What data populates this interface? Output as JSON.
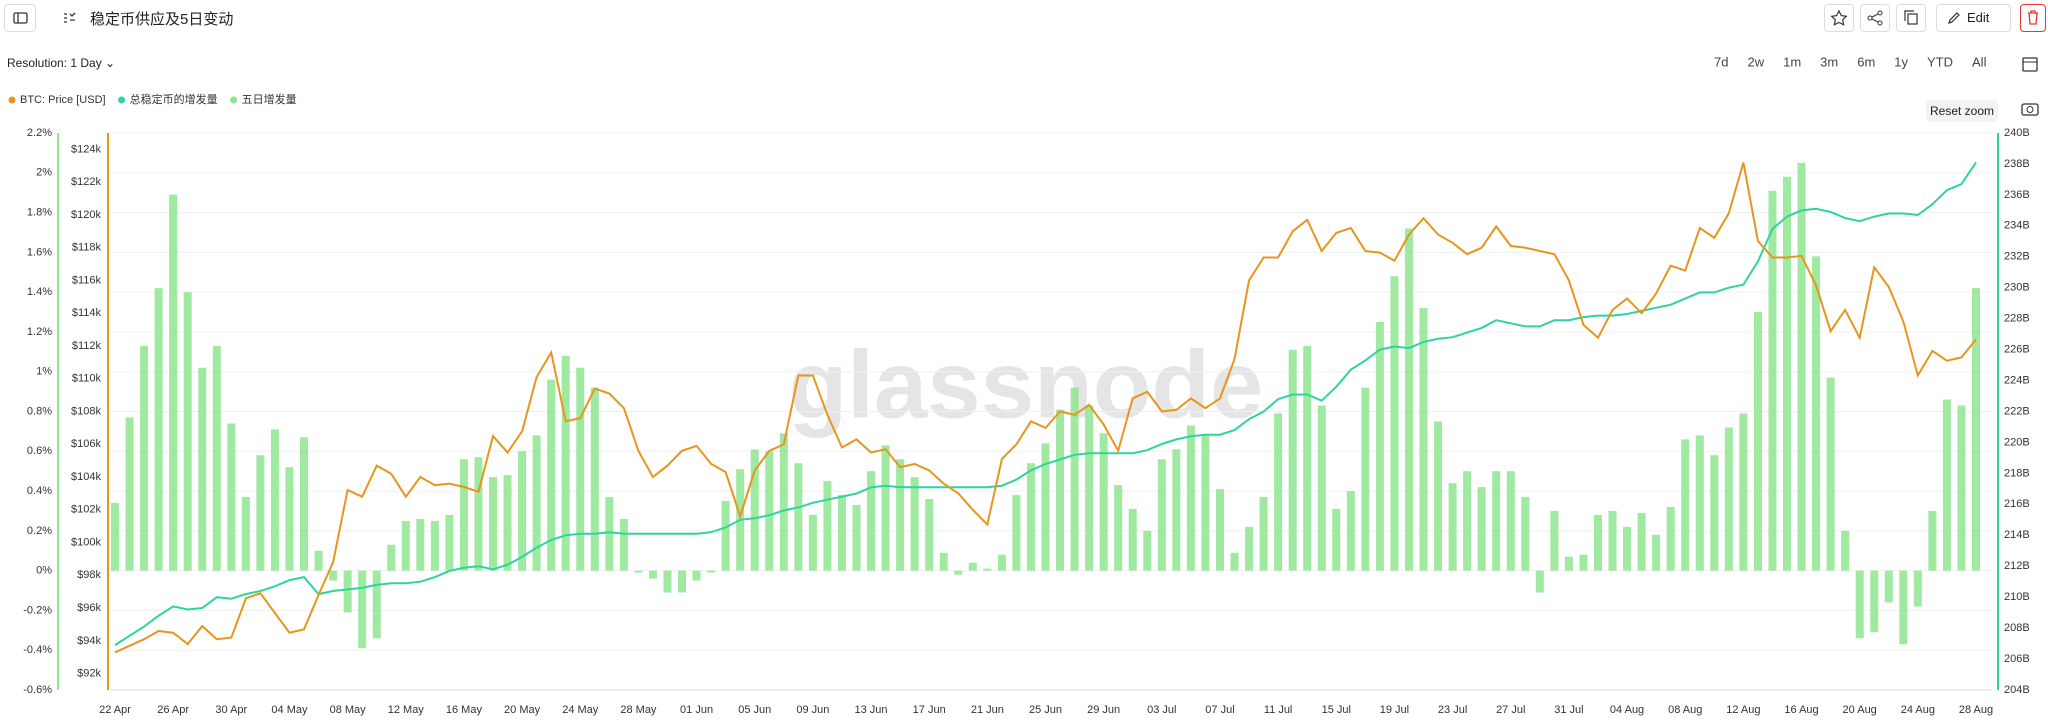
{
  "header": {
    "title": "稳定币供应及5日变动",
    "edit": "Edit"
  },
  "controls": {
    "resolution": "Resolution: 1 Day",
    "ranges": [
      "7d",
      "2w",
      "1m",
      "3m",
      "6m",
      "1y",
      "YTD",
      "All"
    ],
    "reset_zoom": "Reset zoom"
  },
  "chart_data": {
    "type": "combo",
    "watermark": "glassnode",
    "grid": true,
    "categories": [
      "22 Apr",
      null,
      null,
      null,
      "26 Apr",
      null,
      null,
      null,
      "30 Apr",
      null,
      null,
      null,
      "04 May",
      null,
      null,
      null,
      "08 May",
      null,
      null,
      null,
      "12 May",
      null,
      null,
      null,
      "16 May",
      null,
      null,
      null,
      "20 May",
      null,
      null,
      null,
      "24 May",
      null,
      null,
      null,
      "28 May",
      null,
      null,
      null,
      "01 Jun",
      null,
      null,
      null,
      "05 Jun",
      null,
      null,
      null,
      "09 Jun",
      null,
      null,
      null,
      "13 Jun",
      null,
      null,
      null,
      "17 Jun",
      null,
      null,
      null,
      "21 Jun",
      null,
      null,
      null,
      "25 Jun",
      null,
      null,
      null,
      "29 Jun",
      null,
      null,
      null,
      "03 Jul",
      null,
      null,
      null,
      "07 Jul",
      null,
      null,
      null,
      "11 Jul",
      null,
      null,
      null,
      "15 Jul",
      null,
      null,
      null,
      "19 Jul",
      null,
      null,
      null,
      "23 Jul",
      null,
      null,
      null,
      "27 Jul",
      null,
      null,
      null,
      "31 Jul",
      null,
      null,
      null,
      "04 Aug",
      null,
      null,
      null,
      "08 Aug",
      null,
      null,
      null,
      "12 Aug",
      null,
      null,
      null,
      "16 Aug",
      null,
      null,
      null,
      "20 Aug",
      null,
      null,
      null,
      "24 Aug",
      null,
      null,
      null,
      "28 Aug"
    ],
    "ylim": [
      -0.6,
      2.2
    ],
    "yticks": [
      {
        "value": -0.6,
        "label": "-0.6%"
      },
      {
        "value": -0.4,
        "label": "-0.4%"
      },
      {
        "value": -0.2,
        "label": "-0.2%"
      },
      {
        "value": 0,
        "label": "0%"
      },
      {
        "value": 0.2,
        "label": "0.2%"
      },
      {
        "value": 0.4,
        "label": "0.4%"
      },
      {
        "value": 0.6,
        "label": "0.6%"
      },
      {
        "value": 0.8,
        "label": "0.8%"
      },
      {
        "value": 1,
        "label": "1%"
      },
      {
        "value": 1.2,
        "label": "1.2%"
      },
      {
        "value": 1.4,
        "label": "1.4%"
      },
      {
        "value": 1.6,
        "label": "1.6%"
      },
      {
        "value": 1.8,
        "label": "1.8%"
      },
      {
        "value": 2,
        "label": "2%"
      },
      {
        "value": 2.2,
        "label": "2.2%"
      }
    ],
    "y2lim": [
      91,
      125
    ],
    "y2ticks": [
      {
        "value": 92,
        "label": "$92k"
      },
      {
        "value": 94,
        "label": "$94k"
      },
      {
        "value": 96,
        "label": "$96k"
      },
      {
        "value": 98,
        "label": "$98k"
      },
      {
        "value": 100,
        "label": "$100k"
      },
      {
        "value": 102,
        "label": "$102k"
      },
      {
        "value": 104,
        "label": "$104k"
      },
      {
        "value": 106,
        "label": "$106k"
      },
      {
        "value": 108,
        "label": "$108k"
      },
      {
        "value": 110,
        "label": "$110k"
      },
      {
        "value": 112,
        "label": "$112k"
      },
      {
        "value": 114,
        "label": "$114k"
      },
      {
        "value": 116,
        "label": "$116k"
      },
      {
        "value": 118,
        "label": "$118k"
      },
      {
        "value": 120,
        "label": "$120k"
      },
      {
        "value": 122,
        "label": "$122k"
      },
      {
        "value": 124,
        "label": "$124k"
      }
    ],
    "y3lim": [
      204,
      240
    ],
    "y3ticks": [
      {
        "value": 204,
        "label": "204B"
      },
      {
        "value": 206,
        "label": "206B"
      },
      {
        "value": 208,
        "label": "208B"
      },
      {
        "value": 210,
        "label": "210B"
      },
      {
        "value": 212,
        "label": "212B"
      },
      {
        "value": 214,
        "label": "214B"
      },
      {
        "value": 216,
        "label": "216B"
      },
      {
        "value": 218,
        "label": "218B"
      },
      {
        "value": 220,
        "label": "220B"
      },
      {
        "value": 222,
        "label": "222B"
      },
      {
        "value": 224,
        "label": "224B"
      },
      {
        "value": 226,
        "label": "226B"
      },
      {
        "value": 228,
        "label": "228B"
      },
      {
        "value": 230,
        "label": "230B"
      },
      {
        "value": 232,
        "label": "232B"
      },
      {
        "value": 234,
        "label": "234B"
      },
      {
        "value": 236,
        "label": "236B"
      },
      {
        "value": 238,
        "label": "238B"
      },
      {
        "value": 240,
        "label": "240B"
      }
    ],
    "series": [
      {
        "name": "BTC: Price [USD]",
        "color": "#e8951c",
        "type": "line",
        "axis": "y2",
        "values": [
          93.3,
          93.7,
          94.1,
          94.6,
          94.5,
          93.8,
          94.9,
          94.1,
          94.2,
          96.6,
          96.9,
          95.7,
          94.5,
          94.7,
          96.8,
          98.8,
          103.2,
          102.8,
          104.7,
          104.2,
          102.8,
          104.0,
          103.5,
          103.6,
          103.4,
          103.1,
          106.5,
          105.5,
          106.8,
          110.1,
          111.6,
          107.4,
          107.6,
          109.4,
          109.1,
          108.2,
          105.6,
          104.0,
          104.7,
          105.6,
          105.9,
          104.8,
          104.3,
          101.6,
          104.4,
          105.6,
          106.0,
          110.2,
          110.2,
          107.8,
          105.8,
          106.3,
          105.5,
          105.7,
          104.6,
          104.8,
          104.4,
          103.6,
          103.0,
          102.0,
          101.1,
          105.1,
          106.0,
          107.4,
          107.0,
          108.0,
          107.8,
          108.4,
          107.2,
          105.6,
          108.8,
          109.2,
          108.0,
          108.1,
          108.8,
          108.2,
          108.8,
          111.2,
          116.0,
          117.4,
          117.4,
          119.0,
          119.7,
          117.8,
          118.9,
          119.2,
          117.8,
          117.7,
          117.2,
          118.8,
          119.8,
          118.8,
          118.3,
          117.6,
          118.0,
          119.3,
          118.1,
          118.0,
          117.8,
          117.6,
          116.0,
          113.3,
          112.5,
          114.2,
          114.9,
          114.0,
          115.2,
          116.9,
          116.6,
          119.2,
          118.6,
          120.1,
          123.2,
          118.4,
          117.4,
          117.4,
          117.5,
          115.7,
          112.9,
          114.2,
          112.5,
          116.8,
          115.6,
          113.5,
          110.2,
          111.7,
          111.1,
          111.3,
          112.4
        ]
      },
      {
        "name": "总稳定币的增发量",
        "color": "#2ed3a2",
        "type": "line",
        "axis": "y3",
        "values": [
          206.9,
          207.5,
          208.1,
          208.8,
          209.4,
          209.2,
          209.3,
          210.0,
          209.9,
          210.2,
          210.4,
          210.7,
          211.1,
          211.3,
          210.2,
          210.4,
          210.5,
          210.6,
          210.8,
          210.9,
          210.9,
          211.0,
          211.3,
          211.7,
          211.9,
          212.0,
          211.8,
          212.1,
          212.6,
          213.2,
          213.7,
          214.0,
          214.1,
          214.1,
          214.2,
          214.1,
          214.1,
          214.1,
          214.1,
          214.1,
          214.1,
          214.2,
          214.5,
          215.0,
          215.1,
          215.3,
          215.6,
          215.8,
          216.1,
          216.3,
          216.5,
          216.7,
          217.1,
          217.2,
          217.1,
          217.1,
          217.1,
          217.1,
          217.1,
          217.1,
          217.1,
          217.2,
          217.6,
          218.2,
          218.6,
          218.9,
          219.2,
          219.3,
          219.3,
          219.3,
          219.3,
          219.5,
          219.9,
          220.2,
          220.4,
          220.5,
          220.5,
          220.8,
          221.5,
          222.0,
          222.8,
          223.1,
          223.1,
          222.7,
          223.6,
          224.7,
          225.3,
          226.0,
          226.2,
          226.1,
          226.5,
          226.7,
          226.8,
          227.1,
          227.4,
          227.9,
          227.7,
          227.5,
          227.5,
          227.9,
          227.9,
          228.1,
          228.2,
          228.2,
          228.3,
          228.5,
          228.7,
          228.9,
          229.3,
          229.7,
          229.7,
          230.0,
          230.2,
          231.7,
          233.8,
          234.6,
          235.0,
          235.1,
          234.9,
          234.5,
          234.3,
          234.6,
          234.8,
          234.8,
          234.7,
          235.4,
          236.3,
          236.7,
          238.1
        ]
      },
      {
        "name": "五日增发量",
        "color": "#8fe58f",
        "type": "bar",
        "axis": "y",
        "values": [
          0.34,
          0.77,
          1.13,
          1.42,
          1.89,
          1.4,
          1.02,
          1.13,
          0.74,
          0.37,
          0.58,
          0.71,
          0.52,
          0.67,
          0.1,
          -0.05,
          -0.21,
          -0.39,
          -0.34,
          0.13,
          0.25,
          0.26,
          0.25,
          0.28,
          0.56,
          0.57,
          0.47,
          0.48,
          0.6,
          0.68,
          0.96,
          1.08,
          1.02,
          0.92,
          0.37,
          0.26,
          -0.01,
          -0.04,
          -0.11,
          -0.11,
          -0.05,
          -0.01,
          0.35,
          0.51,
          0.61,
          0.6,
          0.69,
          0.54,
          0.28,
          0.45,
          0.38,
          0.33,
          0.5,
          0.63,
          0.56,
          0.47,
          0.36,
          0.09,
          -0.02,
          0.04,
          0.01,
          0.08,
          0.38,
          0.54,
          0.64,
          0.81,
          0.92,
          0.83,
          0.69,
          0.43,
          0.31,
          0.2,
          0.56,
          0.61,
          0.73,
          0.68,
          0.41,
          0.09,
          0.22,
          0.37,
          0.79,
          1.11,
          1.13,
          0.83,
          0.31,
          0.4,
          0.92,
          1.25,
          1.48,
          1.72,
          1.32,
          0.75,
          0.44,
          0.5,
          0.42,
          0.5,
          0.5,
          0.37,
          -0.11,
          0.3,
          0.07,
          0.08,
          0.28,
          0.3,
          0.22,
          0.29,
          0.18,
          0.32,
          0.66,
          0.68,
          0.58,
          0.72,
          0.79,
          1.3,
          1.91,
          1.98,
          2.05,
          1.58,
          0.97,
          0.2,
          -0.34,
          -0.31,
          -0.16,
          -0.37,
          -0.18,
          0.3,
          0.86,
          0.83,
          1.42
        ]
      }
    ]
  }
}
